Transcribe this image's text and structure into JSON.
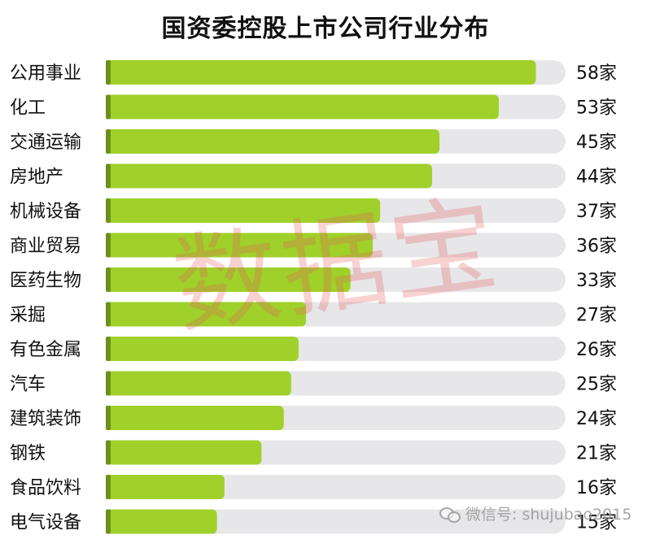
{
  "chart_data": {
    "type": "bar",
    "orientation": "horizontal",
    "title": "国资委控股上市公司行业分布",
    "categories": [
      "公用事业",
      "化工",
      "交通运输",
      "房地产",
      "机械设备",
      "商业贸易",
      "医药生物",
      "采掘",
      "有色金属",
      "汽车",
      "建筑装饰",
      "钢铁",
      "食品饮料",
      "电气设备"
    ],
    "values": [
      58,
      53,
      45,
      44,
      37,
      36,
      33,
      27,
      26,
      25,
      24,
      21,
      16,
      15
    ],
    "value_labels": [
      "58家",
      "53家",
      "45家",
      "44家",
      "37家",
      "36家",
      "33家",
      "27家",
      "26家",
      "25家",
      "24家",
      "21家",
      "16家",
      "15家"
    ],
    "xlim": [
      0,
      62
    ],
    "grid": false,
    "legend": "none",
    "colors": {
      "bar": "#9fd12a",
      "track": "#e7e7e9",
      "cap": "#6e8f1d"
    }
  },
  "watermark": "数据宝",
  "wechat": {
    "icon": "wechat-icon",
    "text": "微信号: shujubao2015"
  }
}
